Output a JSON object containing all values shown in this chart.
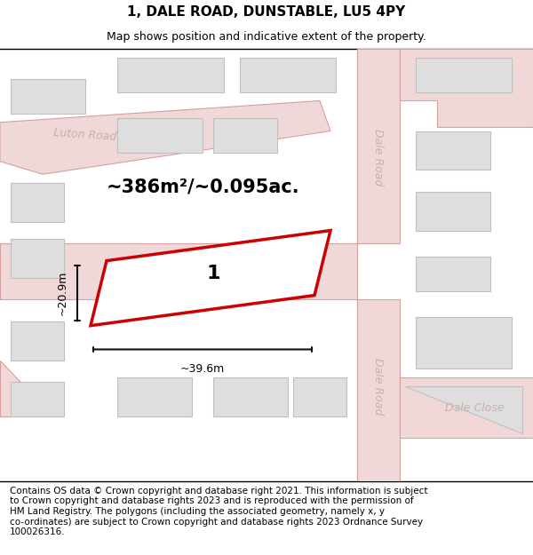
{
  "title": "1, DALE ROAD, DUNSTABLE, LU5 4PY",
  "subtitle": "Map shows position and indicative extent of the property.",
  "footer": "Contains OS data © Crown copyright and database right 2021. This information is subject\nto Crown copyright and database rights 2023 and is reproduced with the permission of\nHM Land Registry. The polygons (including the associated geometry, namely x, y\nco-ordinates) are subject to Crown copyright and database rights 2023 Ordnance Survey\n100026316.",
  "map_bg": "#f7f7f7",
  "road_fill": "#f0d8d8",
  "road_edge": "#d4a0a0",
  "bld_fill": "#dedede",
  "bld_edge": "#c0c0c0",
  "prop_fill": "#ffffff",
  "prop_edge": "#cc0000",
  "road_label_color": "#c8b0b0",
  "dim_color": "#111111",
  "area_text": "~386m²/~0.095ac.",
  "property_label": "1",
  "width_label": "~39.6m",
  "height_label": "~20.9m",
  "title_fontsize": 11,
  "subtitle_fontsize": 9,
  "footer_fontsize": 7.5,
  "area_fontsize": 15,
  "prop_label_fontsize": 16,
  "road_label_fontsize": 9,
  "dim_fontsize": 9
}
